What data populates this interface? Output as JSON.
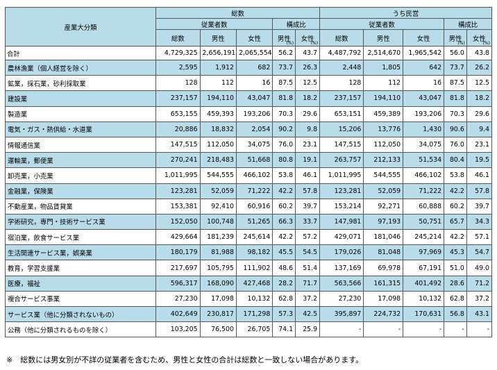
{
  "header": {
    "category": "産業大分類",
    "total_group": "総数",
    "private_group": "うち民営",
    "employees": "従業者数",
    "composition": "構成比",
    "col_total": "総数",
    "col_male": "男性",
    "col_female": "女性",
    "unit": "(%)"
  },
  "rows": [
    {
      "name": "合計",
      "cells": [
        "4,729,325",
        "2,656,191",
        "2,065,554",
        "56.2",
        "43.7",
        "4,487,792",
        "2,514,670",
        "1,965,542",
        "56.0",
        "43.8"
      ]
    },
    {
      "name": "農林漁業（個人経営を除く）",
      "cells": [
        "2,595",
        "1,912",
        "682",
        "73.7",
        "26.3",
        "2,448",
        "1,805",
        "642",
        "73.7",
        "26.2"
      ]
    },
    {
      "name": "鉱業，採石業，砂利採取業",
      "cells": [
        "128",
        "112",
        "16",
        "87.5",
        "12.5",
        "128",
        "112",
        "16",
        "87.5",
        "12.5"
      ]
    },
    {
      "name": "建設業",
      "cells": [
        "237,157",
        "194,110",
        "43,047",
        "81.8",
        "18.2",
        "237,157",
        "194,110",
        "43,047",
        "81.8",
        "18.2"
      ]
    },
    {
      "name": "製造業",
      "cells": [
        "653,155",
        "459,393",
        "193,206",
        "70.3",
        "29.6",
        "653,151",
        "459,389",
        "193,206",
        "70.3",
        "29.6"
      ]
    },
    {
      "name": "電気・ガス・熱供給・水道業",
      "cells": [
        "20,886",
        "18,832",
        "2,054",
        "90.2",
        "9.8",
        "15,206",
        "13,776",
        "1,430",
        "90.6",
        "9.4"
      ]
    },
    {
      "name": "情報通信業",
      "cells": [
        "147,515",
        "112,050",
        "34,075",
        "76.0",
        "23.1",
        "147,515",
        "112,050",
        "34,075",
        "76.0",
        "23.1"
      ]
    },
    {
      "name": "運輸業，郵便業",
      "cells": [
        "270,241",
        "218,483",
        "51,668",
        "80.8",
        "19.1",
        "263,757",
        "212,133",
        "51,534",
        "80.4",
        "19.5"
      ]
    },
    {
      "name": "卸売業，小売業",
      "cells": [
        "1,011,995",
        "544,555",
        "466,102",
        "53.8",
        "46.1",
        "1,011,995",
        "544,555",
        "466,102",
        "53.8",
        "46.1"
      ]
    },
    {
      "name": "金融業，保険業",
      "cells": [
        "123,281",
        "52,059",
        "71,222",
        "42.2",
        "57.8",
        "123,281",
        "52,059",
        "71,222",
        "42.2",
        "57.8"
      ]
    },
    {
      "name": "不動産業，物品賃貸業",
      "cells": [
        "153,381",
        "92,410",
        "60,916",
        "60.2",
        "39.7",
        "153,214",
        "92,271",
        "60,888",
        "60.2",
        "39.7"
      ]
    },
    {
      "name": "学術研究，専門・技術サービス業",
      "cells": [
        "152,050",
        "100,748",
        "51,265",
        "66.3",
        "33.7",
        "147,981",
        "97,193",
        "50,751",
        "65.7",
        "34.3"
      ]
    },
    {
      "name": "宿泊業，飲食サービス業",
      "cells": [
        "429,664",
        "181,239",
        "245,614",
        "42.2",
        "57.2",
        "429,071",
        "181,046",
        "245,214",
        "42.2",
        "57.1"
      ]
    },
    {
      "name": "生活関連サービス業，娯楽業",
      "cells": [
        "180,179",
        "81,988",
        "98,182",
        "45.5",
        "54.5",
        "179,026",
        "81,048",
        "97,969",
        "45.3",
        "54.7"
      ]
    },
    {
      "name": "教育，学習支援業",
      "cells": [
        "217,697",
        "105,795",
        "111,902",
        "48.6",
        "51.4",
        "137,169",
        "69,978",
        "67,191",
        "51.0",
        "49.0"
      ]
    },
    {
      "name": "医療，福祉",
      "cells": [
        "596,317",
        "168,090",
        "427,468",
        "28.2",
        "71.7",
        "563,566",
        "161,315",
        "401,492",
        "28.6",
        "71.2"
      ]
    },
    {
      "name": "複合サービス事業",
      "cells": [
        "27,230",
        "17,098",
        "10,132",
        "62.8",
        "37.2",
        "27,230",
        "17,098",
        "10,132",
        "62.8",
        "37.2"
      ]
    },
    {
      "name": "サービス業（他に分類されないもの）",
      "cells": [
        "402,649",
        "230,817",
        "171,298",
        "57.3",
        "42.5",
        "395,897",
        "224,732",
        "170,631",
        "56.8",
        "43.1"
      ]
    },
    {
      "name": "公務（他に分類されるものを除く）",
      "cells": [
        "103,205",
        "76,500",
        "26,705",
        "74.1",
        "25.9",
        "-",
        "-",
        "-",
        "-",
        "-"
      ]
    }
  ],
  "footnote": "※　総数には男女別が不詳の従業者を含むため、男性と女性の合計は総数と一致しない場合があります。"
}
